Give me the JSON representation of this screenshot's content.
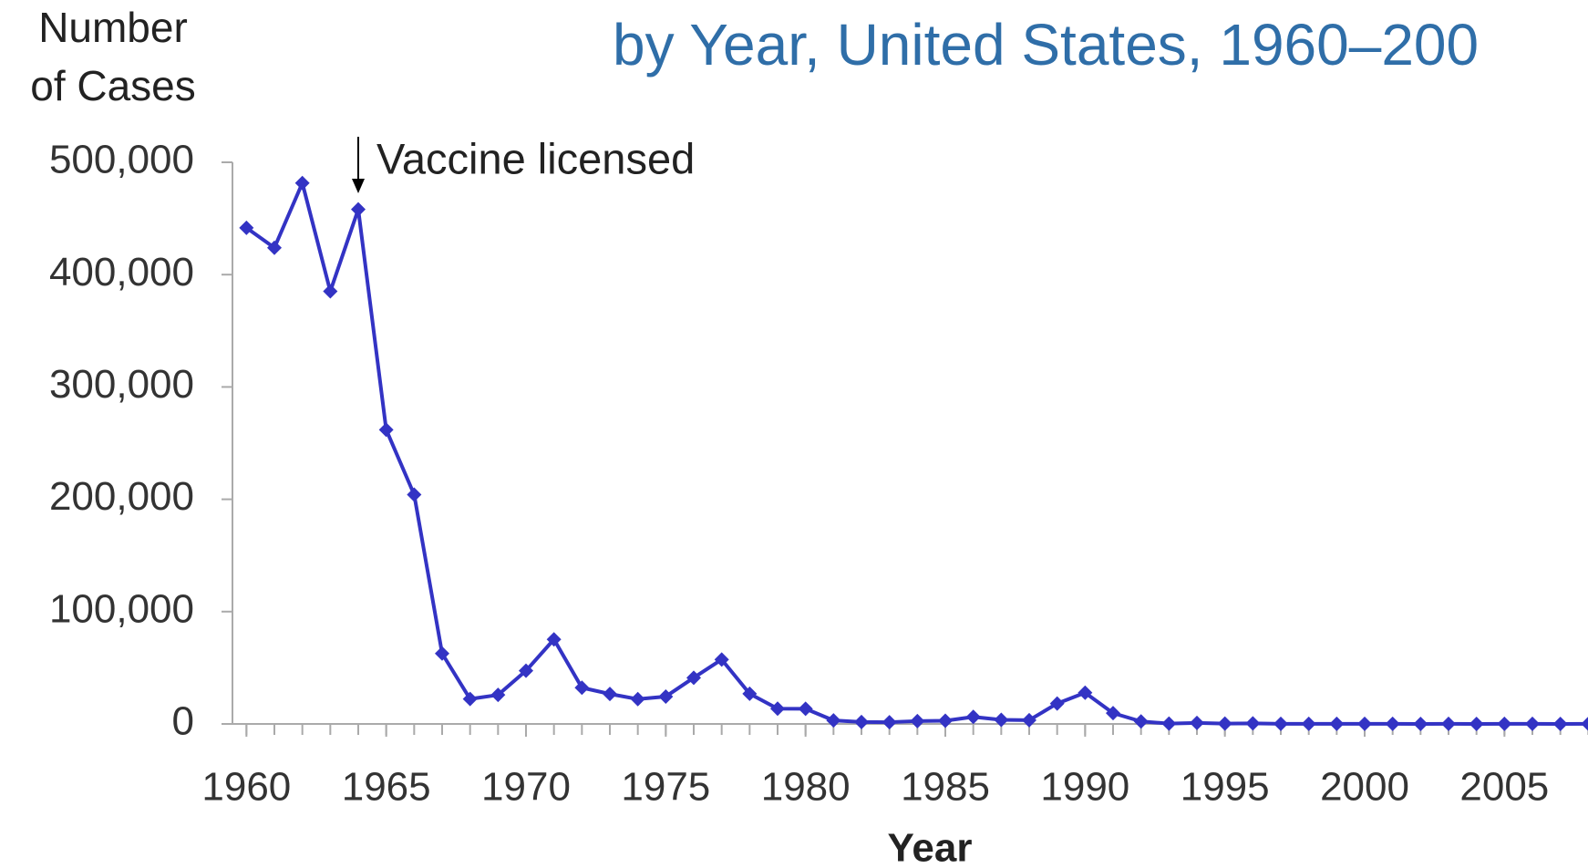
{
  "chart_data": {
    "type": "line",
    "title": "by Year, United States, 1960–200",
    "ylabel_lines": [
      "Number",
      "of Cases"
    ],
    "xlabel": "Year",
    "annotation": {
      "text": "Vaccine licensed",
      "x": 1964
    },
    "x": [
      1960,
      1961,
      1962,
      1963,
      1964,
      1965,
      1966,
      1967,
      1968,
      1969,
      1970,
      1971,
      1972,
      1973,
      1974,
      1975,
      1976,
      1977,
      1978,
      1979,
      1980,
      1981,
      1982,
      1983,
      1984,
      1985,
      1986,
      1987,
      1988,
      1989,
      1990,
      1991,
      1992,
      1993,
      1994,
      1995,
      1996,
      1997,
      1998,
      1999,
      2000,
      2001,
      2002,
      2003,
      2004,
      2005,
      2006,
      2007,
      2008
    ],
    "series": [
      {
        "name": "Cases",
        "color": "#3333c4",
        "values": [
          441703,
          423919,
          481530,
          385156,
          458083,
          261904,
          204136,
          62705,
          22231,
          25826,
          47351,
          75290,
          32275,
          26690,
          22094,
          24374,
          41126,
          57345,
          26871,
          13597,
          13506,
          3124,
          1714,
          1497,
          2587,
          2822,
          6282,
          3655,
          3396,
          18193,
          27786,
          9643,
          2237,
          312,
          963,
          309,
          508,
          138,
          100,
          100,
          86,
          116,
          44,
          56,
          37,
          66,
          55,
          43,
          140
        ]
      }
    ],
    "xlim": [
      1959.5,
      2008.5
    ],
    "xticks": [
      1960,
      1965,
      1970,
      1975,
      1980,
      1985,
      1990,
      1995,
      2000,
      2005
    ],
    "ylim": [
      0,
      500000
    ],
    "yticks": [
      {
        "value": 0,
        "label": "0"
      },
      {
        "value": 100000,
        "label": "100,000"
      },
      {
        "value": 200000,
        "label": "200,000"
      },
      {
        "value": 300000,
        "label": "300,000"
      },
      {
        "value": 400000,
        "label": "400,000"
      },
      {
        "value": 500000,
        "label": "500,000"
      }
    ]
  }
}
